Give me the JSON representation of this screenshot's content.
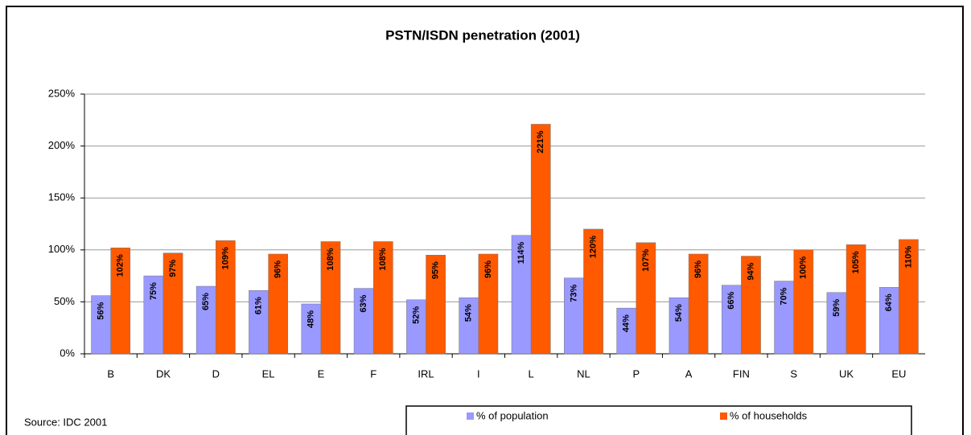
{
  "chart_data": {
    "type": "bar",
    "title": "PSTN/ISDN penetration (2001)",
    "source": "Source: IDC 2001",
    "categories": [
      "B",
      "DK",
      "D",
      "EL",
      "E",
      "F",
      "IRL",
      "I",
      "L",
      "NL",
      "P",
      "A",
      "FIN",
      "S",
      "UK",
      "EU"
    ],
    "series": [
      {
        "name": "% of population",
        "color": "#9999ff",
        "values": [
          56,
          75,
          65,
          61,
          48,
          63,
          52,
          54,
          114,
          73,
          44,
          54,
          66,
          70,
          59,
          64
        ],
        "value_labels": [
          "56%",
          "75%",
          "65%",
          "61%",
          "48%",
          "63%",
          "52%",
          "54%",
          "114%",
          "73%",
          "44%",
          "54%",
          "66%",
          "70%",
          "59%",
          "64%"
        ]
      },
      {
        "name": "% of households",
        "color": "#ff5a00",
        "values": [
          102,
          97,
          109,
          96,
          108,
          108,
          95,
          96,
          221,
          120,
          107,
          96,
          94,
          100,
          105,
          110
        ],
        "value_labels": [
          "102%",
          "97%",
          "109%",
          "96%",
          "108%",
          "108%",
          "95%",
          "96%",
          "221%",
          "120%",
          "107%",
          "96%",
          "94%",
          "100%",
          "105%",
          "110%"
        ]
      }
    ],
    "ylim": [
      0,
      250
    ],
    "yticks": [
      {
        "value": 0,
        "label": "0%"
      },
      {
        "value": 50,
        "label": "50%"
      },
      {
        "value": 100,
        "label": "100%"
      },
      {
        "value": 150,
        "label": "150%"
      },
      {
        "value": 200,
        "label": "200%"
      },
      {
        "value": 250,
        "label": "250%"
      }
    ],
    "grid": true
  }
}
